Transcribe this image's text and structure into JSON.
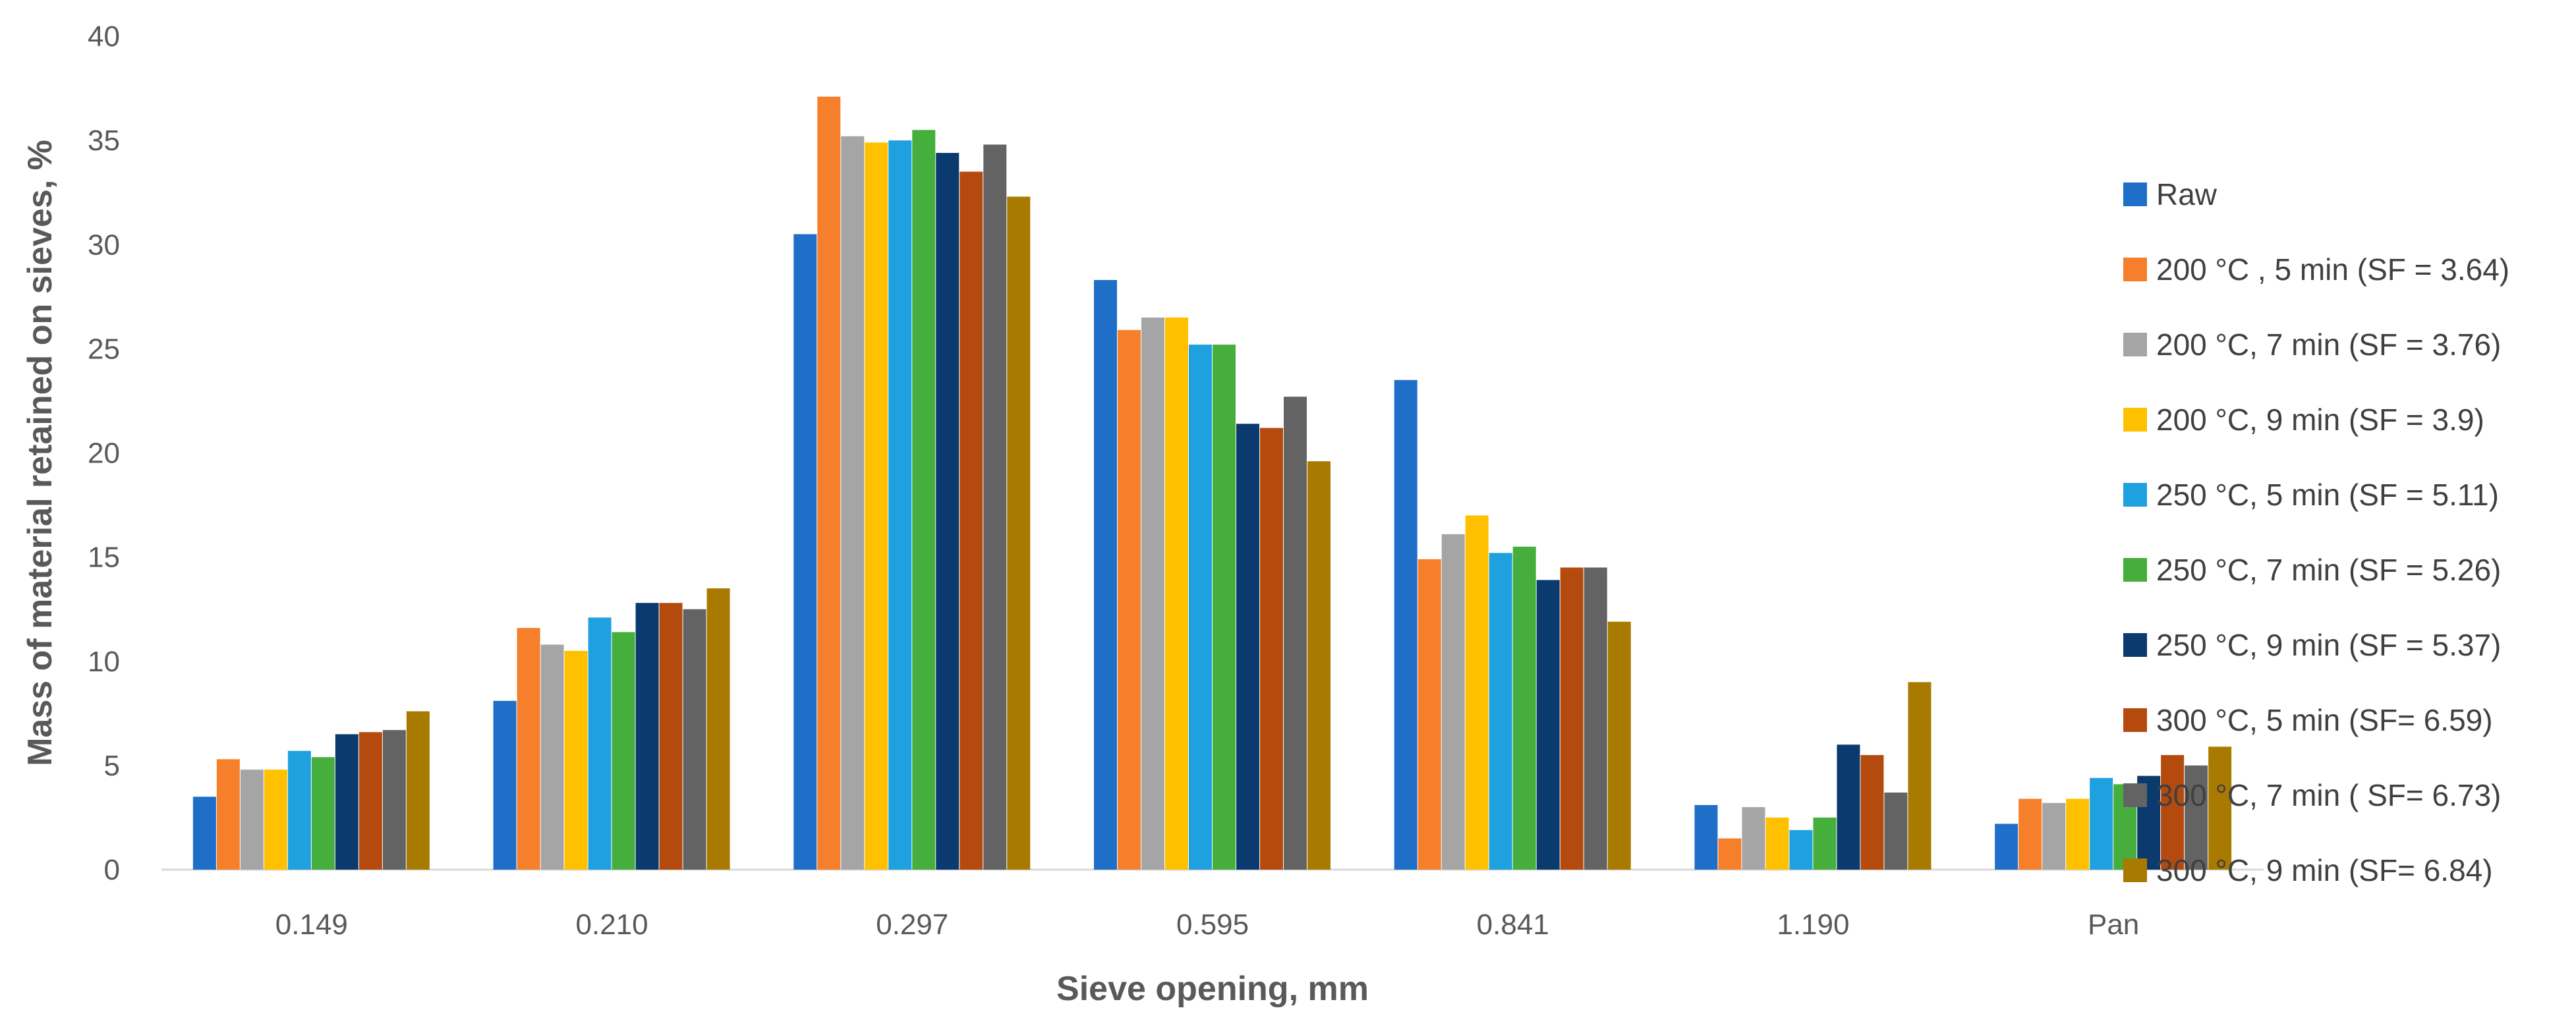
{
  "chart_data": {
    "type": "bar",
    "title": "",
    "xlabel": "Sieve opening, mm",
    "ylabel": "Mass of material retained on sieves, %",
    "ylim": [
      0,
      40
    ],
    "yticks": [
      0,
      5,
      10,
      15,
      20,
      25,
      30,
      35,
      40
    ],
    "grid": false,
    "legend_position": "right",
    "categories": [
      "0.149",
      "0.210",
      "0.297",
      "0.595",
      "0.841",
      "1.190",
      "Pan"
    ],
    "series": [
      {
        "name": "Raw",
        "color": "#1F6FC8",
        "values": [
          3.5,
          8.1,
          30.5,
          28.3,
          23.5,
          3.1,
          2.2
        ]
      },
      {
        "name": "200 °C , 5 min (SF = 3.64)",
        "color": "#F57F2A",
        "values": [
          5.3,
          11.6,
          37.1,
          25.9,
          14.9,
          1.5,
          3.4
        ]
      },
      {
        "name": "200 °C, 7 min (SF = 3.76)",
        "color": "#A5A5A5",
        "values": [
          4.8,
          10.8,
          35.2,
          26.5,
          16.1,
          3.0,
          3.2
        ]
      },
      {
        "name": "200 °C, 9 min (SF = 3.9)",
        "color": "#FFC000",
        "values": [
          4.8,
          10.5,
          34.9,
          26.5,
          17.0,
          2.5,
          3.4
        ]
      },
      {
        "name": "250 °C, 5 min (SF = 5.11)",
        "color": "#1FA0DF",
        "values": [
          5.7,
          12.1,
          35.0,
          25.2,
          15.2,
          1.9,
          4.4
        ]
      },
      {
        "name": "250 °C, 7 min (SF = 5.26)",
        "color": "#46AE3C",
        "values": [
          5.4,
          11.4,
          35.5,
          25.2,
          15.5,
          2.5,
          4.1
        ]
      },
      {
        "name": "250 °C, 9 min (SF = 5.37)",
        "color": "#0B3A6E",
        "values": [
          6.5,
          12.8,
          34.4,
          21.4,
          13.9,
          6.0,
          4.5
        ]
      },
      {
        "name": "300 °C, 5 min (SF= 6.59)",
        "color": "#B54A0F",
        "values": [
          6.6,
          12.8,
          33.5,
          21.2,
          14.5,
          5.5,
          5.5
        ]
      },
      {
        "name": "300 °C, 7 min ( SF= 6.73)",
        "color": "#636363",
        "values": [
          6.7,
          12.5,
          34.8,
          22.7,
          14.5,
          3.7,
          5.0
        ]
      },
      {
        "name": "300 °C, 9 min (SF= 6.84)",
        "color": "#A87A00",
        "values": [
          7.6,
          13.5,
          32.3,
          19.6,
          11.9,
          9.0,
          5.9
        ]
      }
    ]
  }
}
